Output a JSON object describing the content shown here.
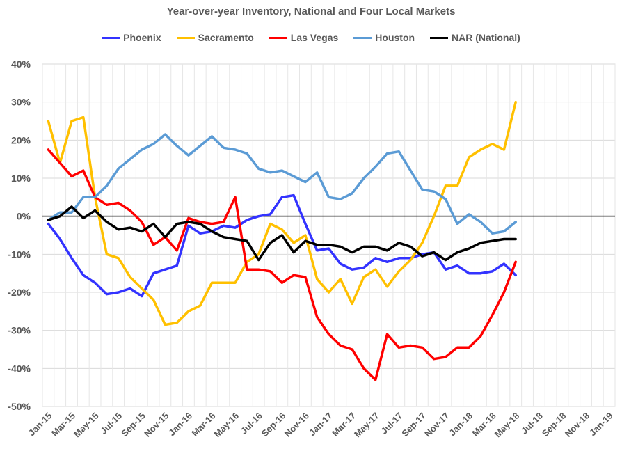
{
  "chart_data": {
    "type": "line",
    "title": "Year-over-year Inventory, National and Four Local Markets",
    "xlabel": "",
    "ylabel": "",
    "ylim": [
      -50,
      40
    ],
    "yticks": [
      "40%",
      "30%",
      "20%",
      "10%",
      "0%",
      "-10%",
      "-20%",
      "-30%",
      "-40%",
      "-50%"
    ],
    "xticks": [
      "Jan-15",
      "Mar-15",
      "May-15",
      "Jul-15",
      "Sep-15",
      "Nov-15",
      "Jan-16",
      "Mar-16",
      "May-16",
      "Jul-16",
      "Sep-16",
      "Nov-16",
      "Jan-17",
      "Mar-17",
      "May-17",
      "Jul-17",
      "Sep-17",
      "Nov-17",
      "Jan-18",
      "Mar-18",
      "May-18",
      "Jul-18",
      "Sep-18",
      "Nov-18",
      "Jan-19"
    ],
    "x_start": "Jan-15",
    "x_unit": "month",
    "grid": "horizontal",
    "legend_position": "top",
    "series": [
      {
        "name": "Phoenix",
        "color": "#3333ff",
        "values": [
          -2,
          -6,
          -11,
          -15.5,
          -17.5,
          -20.5,
          -20,
          -19,
          -21,
          -15,
          -14,
          -13,
          -2.5,
          -4.5,
          -4,
          -2.5,
          -3,
          -1,
          0,
          0.5,
          5,
          5.5,
          -2,
          -9,
          -8.5,
          -12.5,
          -14,
          -13.5,
          -11,
          -12,
          -11,
          -11,
          -10,
          -9.5,
          -14,
          -13,
          -15,
          -15,
          -14.5,
          -12.5,
          -15.5
        ]
      },
      {
        "name": "Sacramento",
        "color": "#ffc000",
        "values": [
          25,
          14,
          25,
          26,
          5,
          -10,
          -11,
          -16,
          -19,
          -22,
          -28.5,
          -28,
          -25,
          -23.5,
          -17.5,
          -17.5,
          -17.5,
          -12,
          -10,
          -2,
          -3.5,
          -7,
          -5,
          -16.5,
          -20,
          -16.5,
          -23,
          -16,
          -14,
          -18.5,
          -14.5,
          -11.5,
          -7,
          0,
          8,
          8,
          15.5,
          17.5,
          19,
          17.5,
          30
        ]
      },
      {
        "name": "Las Vegas",
        "color": "#ff0000",
        "values": [
          17.5,
          14,
          10.5,
          12,
          5,
          3,
          3.5,
          1.5,
          -1.5,
          -7.5,
          -5.5,
          -9,
          -0.5,
          -1.5,
          -2,
          -1.5,
          5,
          -14,
          -14,
          -14.5,
          -17.5,
          -15.5,
          -16,
          -26.5,
          -31,
          -34,
          -35,
          -40,
          -43,
          -31,
          -34.5,
          -34,
          -34.5,
          -37.5,
          -37,
          -34.5,
          -34.5,
          -31.5,
          -26,
          -20,
          -12
        ]
      },
      {
        "name": "Houston",
        "color": "#5b9bd5",
        "values": [
          -1,
          1,
          1,
          5,
          5,
          8,
          12.5,
          15,
          17.5,
          19,
          21.5,
          18.5,
          16,
          18.5,
          21,
          18,
          17.5,
          16.5,
          12.5,
          11.5,
          12,
          10.5,
          9,
          11.5,
          5,
          4.5,
          6,
          10,
          13,
          16.5,
          17,
          12,
          7,
          6.5,
          4.5,
          -2,
          0.5,
          -1.5,
          -4.5,
          -4,
          -1.5
        ]
      },
      {
        "name": "NAR (National)",
        "color": "#000000",
        "values": [
          -1,
          0,
          2.5,
          -0.5,
          1.5,
          -1.5,
          -3.5,
          -3,
          -4,
          -2,
          -5.5,
          -2,
          -1.5,
          -2,
          -4,
          -5.5,
          -6,
          -6.5,
          -11.5,
          -7,
          -5,
          -9.5,
          -6.5,
          -7.5,
          -7.5,
          -8,
          -9.5,
          -8,
          -8,
          -9,
          -7,
          -8,
          -10.5,
          -9.5,
          -11.5,
          -9.5,
          -8.5,
          -7,
          -6.5,
          -6,
          -6
        ]
      }
    ]
  }
}
